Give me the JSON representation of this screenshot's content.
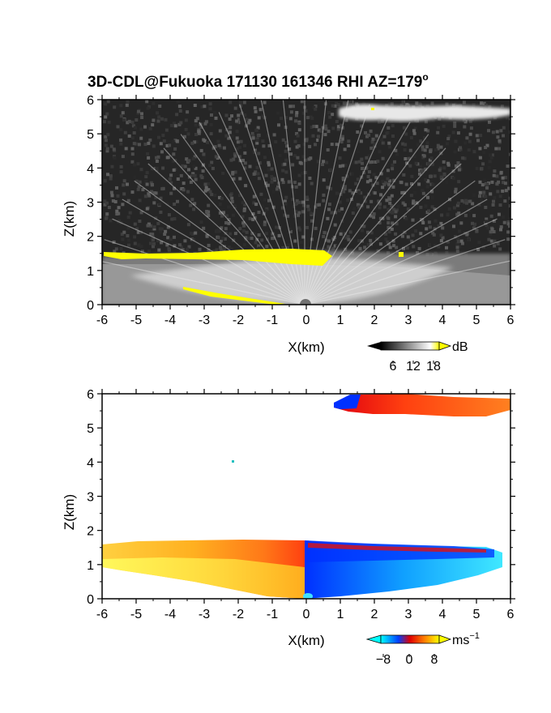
{
  "chart_data": [
    {
      "type": "heatmap",
      "title": "3D-CDL@Fukuoka 171130 161346 RHI AZ=179",
      "title_superscript": "o",
      "xlabel": "X(km)",
      "ylabel": "Z(km)",
      "xlim": [
        -6,
        6
      ],
      "ylim": [
        0,
        6
      ],
      "xticks": [
        "-6",
        "-5",
        "-4",
        "-3",
        "-2",
        "-1",
        "0",
        "1",
        "2",
        "3",
        "4",
        "5",
        "6"
      ],
      "yticks": [
        "0",
        "1",
        "2",
        "3",
        "4",
        "5",
        "6"
      ],
      "colorbar": {
        "unit": "dB",
        "ticks": [
          "6",
          "12",
          "18"
        ],
        "colors": [
          "#000000",
          "#ffffff",
          "#ffff00"
        ]
      },
      "background_color": "#222222",
      "features": [
        {
          "name": "boundary layer aerosol",
          "x_range": [
            -6,
            6
          ],
          "z_range": [
            0,
            1.6
          ],
          "signal": "gray-white"
        },
        {
          "name": "cloud layer",
          "x_range": [
            1,
            6
          ],
          "z_range": [
            5.5,
            5.9
          ],
          "signal": "white"
        },
        {
          "name": "saturated cloud base",
          "x_range": [
            -6,
            0.8
          ],
          "z_range": [
            1.3,
            1.6
          ],
          "signal": "yellow"
        }
      ]
    },
    {
      "type": "heatmap",
      "xlabel": "X(km)",
      "ylabel": "Z(km)",
      "xlim": [
        -6,
        6
      ],
      "ylim": [
        0,
        6
      ],
      "xticks": [
        "-6",
        "-5",
        "-4",
        "-3",
        "-2",
        "-1",
        "0",
        "1",
        "2",
        "3",
        "4",
        "5",
        "6"
      ],
      "yticks": [
        "0",
        "1",
        "2",
        "3",
        "4",
        "5",
        "6"
      ],
      "colorbar": {
        "unit": "ms",
        "unit_superscript": "−1",
        "ticks": [
          "−8",
          "0",
          "8"
        ],
        "colors": [
          "#00ffff",
          "#0030ff",
          "#e00000",
          "#ff7000",
          "#ffff00"
        ]
      },
      "background_color": "#ffffff",
      "features": [
        {
          "name": "positive radial velocity region",
          "x_range": [
            -6,
            0
          ],
          "z_range": [
            0,
            1.6
          ],
          "velocity": "positive"
        },
        {
          "name": "negative radial velocity region",
          "x_range": [
            0,
            6
          ],
          "z_range": [
            0,
            1.55
          ],
          "velocity": "negative"
        },
        {
          "name": "cloud layer velocity",
          "x_range": [
            1,
            6
          ],
          "z_range": [
            5.5,
            6
          ],
          "velocity": "positive"
        }
      ]
    }
  ]
}
